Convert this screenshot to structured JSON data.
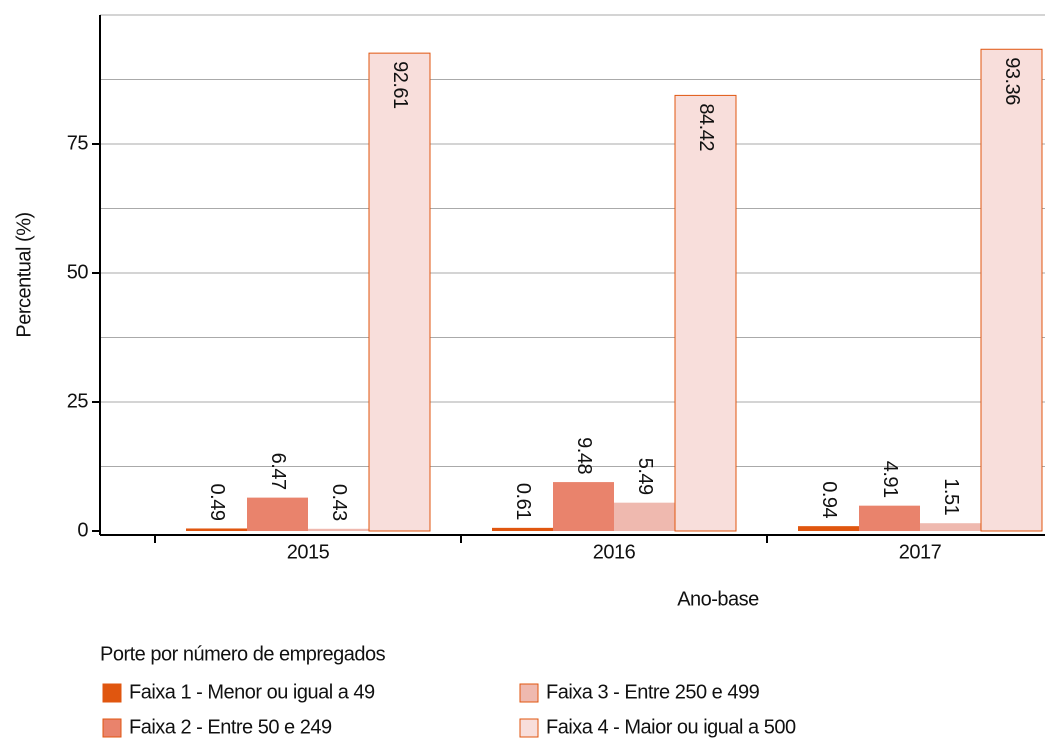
{
  "chart_data": {
    "type": "bar",
    "categories": [
      "2015",
      "2016",
      "2017"
    ],
    "series": [
      {
        "name": "Faixa 1 - Menor ou igual a 49",
        "color": "#e0560f",
        "values": [
          0.49,
          0.61,
          0.94
        ]
      },
      {
        "name": "Faixa 2 - Entre 50 e 249",
        "color": "#e9836c",
        "values": [
          6.47,
          9.48,
          4.91
        ]
      },
      {
        "name": "Faixa 3 - Entre 250 e 499",
        "color": "#efb9af",
        "values": [
          0.43,
          5.49,
          1.51
        ]
      },
      {
        "name": "Faixa 4 - Maior ou igual a 500",
        "color": "#f8dedb",
        "values": [
          92.61,
          84.42,
          93.36
        ]
      }
    ],
    "ylim": [
      0,
      100
    ],
    "yticks": [
      0,
      25,
      50,
      75
    ],
    "minor_grid": [
      12.5,
      37.5,
      62.5,
      87.5,
      100
    ],
    "grid": true,
    "y_label": "Percentual (%)",
    "x_label": "Ano-base",
    "legend_title": "Porte por número de empregados",
    "legend_position": "bottom"
  }
}
